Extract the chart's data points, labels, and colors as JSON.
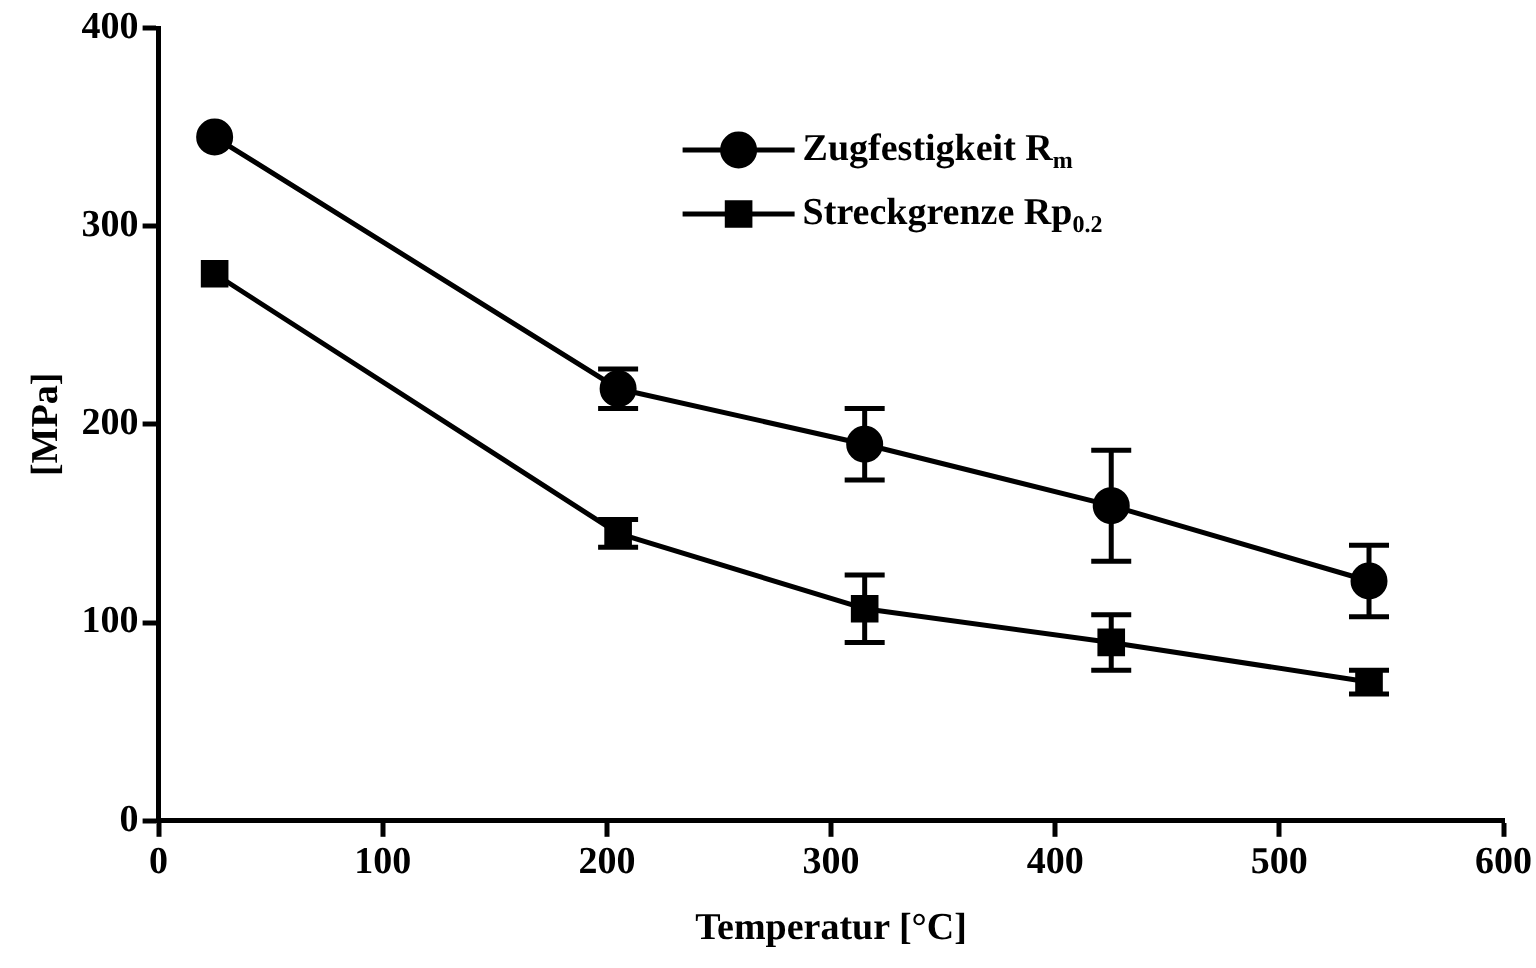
{
  "chart_data": {
    "type": "line",
    "xlabel": "Temperatur [°C]",
    "ylabel": "[MPa]",
    "x": [
      25,
      205,
      315,
      425,
      540
    ],
    "series": [
      {
        "name": "Zugfestigkeit R$_{m}$",
        "color": "#000000",
        "marker": "circle",
        "values": [
          345,
          218,
          190,
          159,
          121
        ],
        "errors": [
          null,
          10,
          18,
          28,
          18
        ]
      },
      {
        "name": "Streckgrenze Rp$_{0.2}$",
        "color": "#000000",
        "marker": "square",
        "values": [
          276,
          145,
          107,
          90,
          70
        ],
        "errors": [
          null,
          7,
          17,
          14,
          6
        ]
      }
    ],
    "xlim": [
      0,
      600
    ],
    "xticks": [
      0,
      100,
      200,
      300,
      400,
      500,
      600
    ],
    "ylim": [
      0,
      400
    ],
    "yticks": [
      0,
      100,
      200,
      300,
      400
    ],
    "grid": false,
    "legend": "top right",
    "line_style": "solid"
  }
}
